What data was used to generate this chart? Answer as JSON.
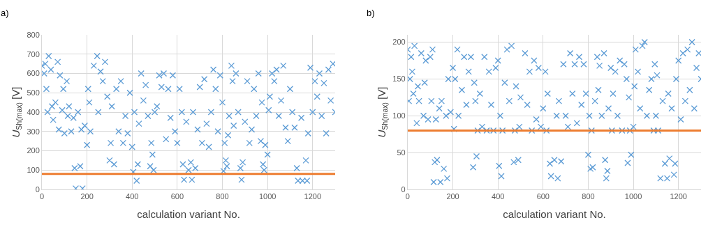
{
  "chart_data": [
    {
      "type": "scatter",
      "title": "a)",
      "xlabel": "calculation variant No.",
      "ylabel": "U$_{Sh(max)}$ [V]",
      "marker": "cross",
      "grid": true,
      "xlim": [
        0,
        1300
      ],
      "xticks": [
        0,
        200,
        400,
        600,
        800,
        1000,
        1200
      ],
      "ylim": [
        0,
        800
      ],
      "yticks": [
        0,
        100,
        200,
        300,
        400,
        500,
        600,
        700,
        800
      ],
      "ref_lines": [
        {
          "axis": "y",
          "value": 80,
          "color": "#ed7d31"
        }
      ],
      "series": [
        {
          "color": "#5b9bd5",
          "x": [
            0,
            10,
            15,
            20,
            25,
            30,
            40,
            45,
            50,
            60,
            70,
            75,
            80,
            90,
            95,
            100,
            110,
            115,
            120,
            130,
            140,
            145,
            150,
            160,
            170,
            175,
            180,
            190,
            200,
            205,
            210,
            215,
            230,
            245,
            250,
            260,
            270,
            280,
            290,
            300,
            305,
            310,
            320,
            330,
            340,
            350,
            360,
            370,
            380,
            390,
            400,
            405,
            410,
            420,
            425,
            430,
            440,
            450,
            460,
            470,
            480,
            485,
            490,
            495,
            500,
            510,
            520,
            530,
            540,
            550,
            560,
            570,
            580,
            590,
            600,
            610,
            620,
            625,
            630,
            640,
            650,
            660,
            665,
            670,
            680,
            690,
            700,
            710,
            720,
            730,
            740,
            750,
            760,
            770,
            780,
            790,
            800,
            805,
            810,
            815,
            820,
            825,
            830,
            840,
            845,
            850,
            860,
            870,
            880,
            885,
            890,
            900,
            910,
            920,
            930,
            940,
            950,
            960,
            970,
            975,
            980,
            985,
            990,
            1000,
            1005,
            1010,
            1020,
            1030,
            1040,
            1050,
            1060,
            1070,
            1080,
            1090,
            1100,
            1110,
            1120,
            1130,
            1135,
            1150,
            1155,
            1170,
            1175,
            1180,
            1190,
            1200,
            1210,
            1220,
            1230,
            1240,
            1250,
            1260,
            1270,
            1280,
            1290,
            1300
          ],
          "values": [
            640,
            600,
            650,
            520,
            400,
            690,
            620,
            430,
            360,
            450,
            660,
            310,
            590,
            410,
            520,
            290,
            560,
            380,
            430,
            300,
            370,
            110,
            5,
            400,
            120,
            310,
            5,
            330,
            230,
            520,
            450,
            300,
            640,
            690,
            400,
            610,
            560,
            660,
            480,
            150,
            240,
            430,
            130,
            520,
            300,
            560,
            240,
            380,
            290,
            500,
            220,
            90,
            400,
            45,
            130,
            340,
            600,
            460,
            540,
            380,
            120,
            240,
            180,
            100,
            400,
            430,
            590,
            530,
            600,
            260,
            520,
            370,
            590,
            300,
            240,
            520,
            400,
            130,
            50,
            350,
            100,
            140,
            50,
            400,
            110,
            310,
            530,
            240,
            570,
            340,
            220,
            400,
            620,
            520,
            300,
            590,
            450,
            95,
            240,
            150,
            120,
            280,
            380,
            640,
            560,
            330,
            600,
            400,
            110,
            50,
            140,
            350,
            560,
            240,
            310,
            520,
            380,
            600,
            250,
            450,
            130,
            100,
            230,
            180,
            410,
            480,
            600,
            560,
            620,
            380,
            460,
            640,
            320,
            250,
            520,
            400,
            320,
            110,
            45,
            370,
            45,
            150,
            45,
            290,
            630,
            400,
            560,
            480,
            600,
            380,
            550,
            290,
            620,
            460,
            650,
            400
          ]
        }
      ]
    },
    {
      "type": "scatter",
      "title": "b)",
      "xlabel": "calculation variant No.",
      "ylabel": "U$_{Sh(max)}$ [V]",
      "marker": "cross",
      "grid": true,
      "xlim": [
        0,
        1300
      ],
      "xticks": [
        0,
        200,
        400,
        600,
        800,
        1000,
        1200
      ],
      "ylim": [
        0,
        210
      ],
      "yticks": [
        0,
        50,
        100,
        150,
        200
      ],
      "ref_lines": [
        {
          "axis": "y",
          "value": 80,
          "color": "#ed7d31"
        }
      ],
      "series": [
        {
          "color": "#5b9bd5",
          "x": [
            0,
            5,
            10,
            15,
            20,
            25,
            30,
            40,
            45,
            50,
            60,
            70,
            75,
            80,
            90,
            100,
            105,
            110,
            115,
            120,
            125,
            130,
            140,
            145,
            150,
            160,
            170,
            175,
            180,
            190,
            200,
            205,
            210,
            220,
            225,
            240,
            250,
            260,
            270,
            280,
            290,
            295,
            300,
            305,
            310,
            320,
            330,
            340,
            350,
            360,
            370,
            380,
            390,
            400,
            405,
            410,
            415,
            420,
            430,
            440,
            450,
            460,
            470,
            475,
            480,
            490,
            495,
            500,
            520,
            530,
            540,
            550,
            560,
            570,
            580,
            590,
            600,
            610,
            615,
            620,
            630,
            635,
            650,
            660,
            665,
            670,
            680,
            690,
            700,
            710,
            720,
            730,
            740,
            750,
            760,
            770,
            780,
            790,
            800,
            805,
            810,
            815,
            820,
            830,
            840,
            845,
            850,
            860,
            870,
            875,
            880,
            885,
            890,
            900,
            905,
            910,
            920,
            930,
            940,
            950,
            960,
            970,
            975,
            980,
            985,
            990,
            1000,
            1005,
            1010,
            1020,
            1030,
            1040,
            1050,
            1060,
            1070,
            1080,
            1090,
            1095,
            1100,
            1105,
            1110,
            1120,
            1130,
            1140,
            1150,
            1155,
            1160,
            1170,
            1180,
            1185,
            1190,
            1200,
            1210,
            1220,
            1230,
            1240,
            1250,
            1260,
            1270,
            1280,
            1290,
            1300
          ],
          "values": [
            190,
            120,
            150,
            180,
            160,
            130,
            195,
            90,
            140,
            120,
            185,
            100,
            145,
            175,
            95,
            180,
            120,
            190,
            10,
            37,
            95,
            40,
            110,
            10,
            120,
            28,
            100,
            15,
            150,
            105,
            165,
            82,
            150,
            190,
            100,
            135,
            180,
            115,
            160,
            180,
            30,
            145,
            120,
            45,
            80,
            130,
            85,
            180,
            80,
            160,
            115,
            80,
            165,
            175,
            32,
            100,
            18,
            80,
            145,
            190,
            120,
            195,
            37,
            80,
            140,
            40,
            85,
            125,
            185,
            115,
            160,
            80,
            175,
            95,
            165,
            85,
            110,
            160,
            80,
            130,
            35,
            18,
            40,
            100,
            15,
            120,
            38,
            170,
            100,
            85,
            185,
            130,
            170,
            90,
            180,
            115,
            170,
            130,
            47,
            100,
            28,
            80,
            30,
            120,
            180,
            135,
            168,
            100,
            185,
            40,
            15,
            25,
            110,
            165,
            80,
            130,
            160,
            100,
            175,
            80,
            170,
            150,
            36,
            125,
            80,
            47,
            85,
            140,
            190,
            160,
            110,
            195,
            200,
            100,
            135,
            150,
            80,
            170,
            100,
            155,
            80,
            15,
            120,
            35,
            15,
            130,
            42,
            110,
            20,
            35,
            150,
            175,
            95,
            185,
            120,
            190,
            135,
            200,
            110,
            165,
            185,
            150
          ]
        }
      ]
    }
  ]
}
